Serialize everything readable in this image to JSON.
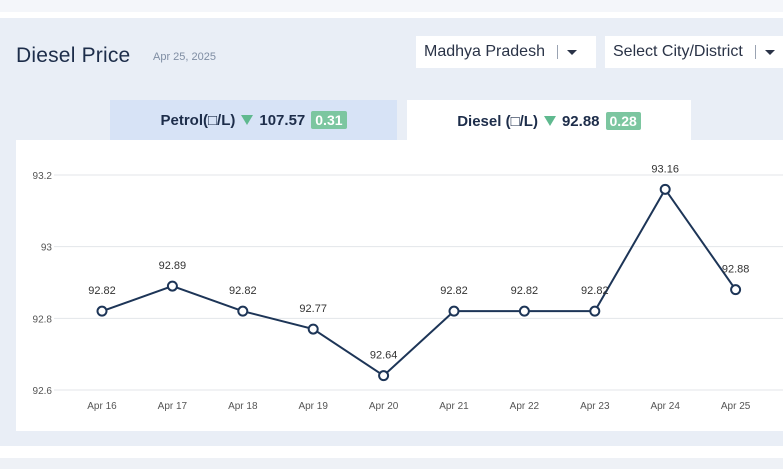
{
  "header": {
    "title": "Diesel Price",
    "date": "Apr 25, 2025",
    "state_select": "Madhya Pradesh",
    "city_select": "Select City/District"
  },
  "tabs": [
    {
      "label": "Petrol(□/L)",
      "price": "107.57",
      "change": "0.31",
      "active": false
    },
    {
      "label": "Diesel (□/L)",
      "price": "92.88",
      "change": "0.28",
      "active": true
    }
  ],
  "colors": {
    "line": "#1d3557",
    "badge": "#7cc6a0",
    "down_triangle": "#5fb98f",
    "grid": "#e3e6ea"
  },
  "chart_data": {
    "type": "line",
    "categories": [
      "Apr 16",
      "Apr 17",
      "Apr 18",
      "Apr 19",
      "Apr 20",
      "Apr 21",
      "Apr 22",
      "Apr 23",
      "Apr 24",
      "Apr 25"
    ],
    "series": [
      {
        "values": [
          92.82,
          92.89,
          92.82,
          92.77,
          92.64,
          92.82,
          92.82,
          92.82,
          93.16,
          92.88
        ]
      }
    ],
    "data_labels": [
      "92.82",
      "92.89",
      "92.82",
      "92.77",
      "92.64",
      "92.82",
      "92.82",
      "92.82",
      "93.16",
      "92.88"
    ],
    "y_ticks": [
      "93.2",
      "93",
      "92.8",
      "92.6"
    ],
    "y_tick_values": [
      93.2,
      93.0,
      92.8,
      92.6
    ],
    "ylim": [
      92.6,
      93.2
    ],
    "grid": true,
    "legend": "none"
  }
}
